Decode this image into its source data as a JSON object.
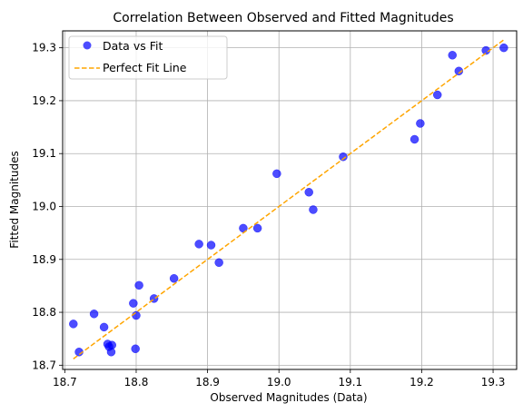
{
  "chart_data": {
    "type": "scatter",
    "title": "Correlation Between Observed and Fitted Magnitudes",
    "xlabel": "Observed Magnitudes (Data)",
    "ylabel": "Fitted Magnitudes",
    "xlim": [
      18.697,
      19.333
    ],
    "ylim": [
      18.692,
      19.332
    ],
    "xticks": [
      "18.7",
      "18.8",
      "18.9",
      "19.0",
      "19.1",
      "19.2",
      "19.3"
    ],
    "yticks": [
      "18.7",
      "18.8",
      "18.9",
      "19.0",
      "19.1",
      "19.2",
      "19.3"
    ],
    "grid": true,
    "legend_position": "upper-left",
    "series": [
      {
        "name": "Data vs Fit",
        "kind": "scatter",
        "color": "#0000ff",
        "points": [
          [
            18.712,
            18.778
          ],
          [
            18.72,
            18.725
          ],
          [
            18.741,
            18.797
          ],
          [
            18.755,
            18.772
          ],
          [
            18.76,
            18.74
          ],
          [
            18.762,
            18.735
          ],
          [
            18.765,
            18.725
          ],
          [
            18.766,
            18.738
          ],
          [
            18.796,
            18.817
          ],
          [
            18.799,
            18.731
          ],
          [
            18.8,
            18.794
          ],
          [
            18.804,
            18.851
          ],
          [
            18.825,
            18.826
          ],
          [
            18.853,
            18.864
          ],
          [
            18.888,
            18.929
          ],
          [
            18.905,
            18.927
          ],
          [
            18.916,
            18.894
          ],
          [
            18.95,
            18.959
          ],
          [
            18.97,
            18.959
          ],
          [
            18.997,
            19.062
          ],
          [
            19.042,
            19.027
          ],
          [
            19.048,
            18.994
          ],
          [
            19.09,
            19.094
          ],
          [
            19.19,
            19.127
          ],
          [
            19.198,
            19.157
          ],
          [
            19.222,
            19.211
          ],
          [
            19.243,
            19.286
          ],
          [
            19.252,
            19.256
          ],
          [
            19.29,
            19.295
          ],
          [
            19.315,
            19.3
          ]
        ]
      },
      {
        "name": "Perfect Fit Line",
        "kind": "line",
        "color": "#ffa500",
        "dash": "dashed",
        "x": [
          18.712,
          19.315
        ],
        "y": [
          18.712,
          19.315
        ]
      }
    ]
  }
}
